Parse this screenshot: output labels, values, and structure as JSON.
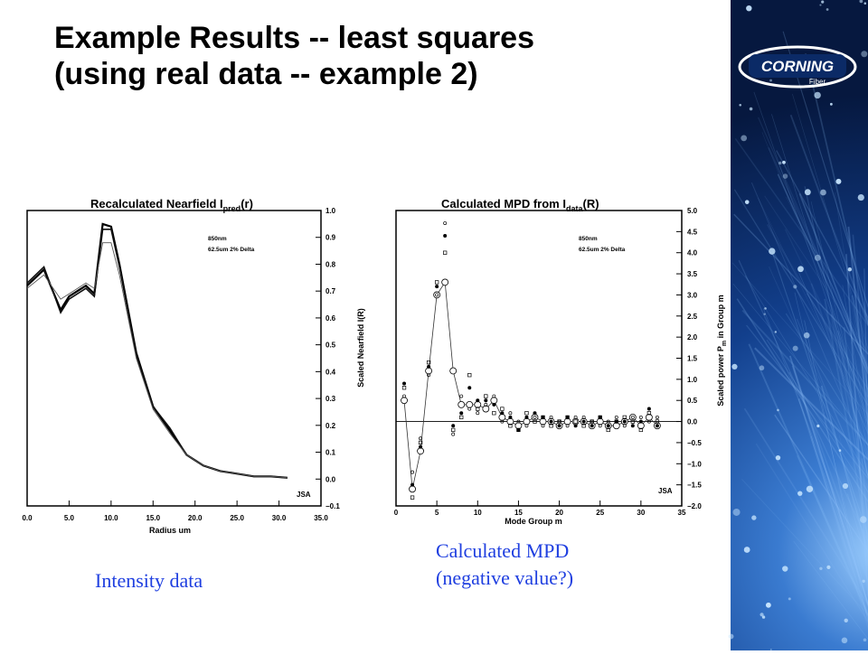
{
  "slide": {
    "title_line1": "Example Results -- least squares",
    "title_line2": "(using real data -- example 2)",
    "caption_left": "Intensity data",
    "caption_right_line1": "Calculated MPD",
    "caption_right_line2": "(negative value?)",
    "logo_text": "CORNING",
    "logo_subtext": "Fiber"
  },
  "colors": {
    "caption": "#1f3fe0",
    "sidebar": "#123f8c",
    "plot_line": "#000000"
  },
  "chart_data": [
    {
      "type": "line",
      "title": "Recalculated Nearfield I",
      "title_sub": "pred",
      "title_suffix": "(r)",
      "xlabel": "Radius um",
      "ylabel": "Scaled Nearfield I(R)",
      "legend": [
        "850nm",
        "62.5um 2% Delta"
      ],
      "signature": "JSA",
      "xlim": [
        0,
        35
      ],
      "ylim": [
        -0.1,
        1.0
      ],
      "x_ticks": [
        "0.0",
        "5.0",
        "10.0",
        "15.0",
        "20.0",
        "25.0",
        "30.0",
        "35.0"
      ],
      "y_ticks": [
        "1.0",
        "0.9",
        "0.8",
        "0.7",
        "0.6",
        "0.5",
        "0.4",
        "0.3",
        "0.2",
        "0.1",
        "0.0",
        "−0.1"
      ],
      "x": [
        0,
        2,
        4,
        5,
        7,
        8,
        9,
        10,
        11,
        13,
        15,
        17,
        19,
        21,
        23,
        25,
        27,
        29,
        31
      ],
      "series": [
        {
          "values": [
            0.72,
            0.78,
            0.63,
            0.68,
            0.72,
            0.69,
            0.95,
            0.94,
            0.8,
            0.47,
            0.27,
            0.18,
            0.09,
            0.05,
            0.03,
            0.02,
            0.01,
            0.01,
            0.005
          ]
        },
        {
          "values": [
            0.73,
            0.79,
            0.62,
            0.67,
            0.71,
            0.68,
            0.93,
            0.93,
            0.79,
            0.46,
            0.27,
            0.19,
            0.09,
            0.05,
            0.03,
            0.02,
            0.01,
            0.01,
            0.005
          ]
        },
        {
          "values": [
            0.71,
            0.76,
            0.67,
            0.69,
            0.73,
            0.71,
            0.88,
            0.88,
            0.76,
            0.45,
            0.26,
            0.17,
            0.09,
            0.05,
            0.03,
            0.02,
            0.01,
            0.01,
            0.005
          ]
        }
      ]
    },
    {
      "type": "scatter",
      "title": "Calculated MPD from I",
      "title_sub": "data",
      "title_suffix": "(R)",
      "xlabel": "Mode Group m",
      "ylabel": "Scaled power P",
      "ylabel_sub": "m",
      "ylabel_suffix": " in Group m",
      "legend": [
        "850nm",
        "62.5um 2% Delta"
      ],
      "signature": "JSA",
      "xlim": [
        0,
        35
      ],
      "ylim": [
        -2.0,
        5.0
      ],
      "x_ticks": [
        "0",
        "5",
        "10",
        "15",
        "20",
        "25",
        "30",
        "35"
      ],
      "y_ticks": [
        "5.0",
        "4.5",
        "4.0",
        "3.5",
        "3.0",
        "2.5",
        "2.0",
        "1.5",
        "1.0",
        "0.5",
        "0.0",
        "−0.5",
        "−1.0",
        "−1.5",
        "−2.0"
      ],
      "x": [
        1,
        2,
        3,
        4,
        5,
        6,
        7,
        8,
        9,
        10,
        11,
        12,
        13,
        14,
        15,
        16,
        17,
        18,
        19,
        20,
        21,
        22,
        23,
        24,
        25,
        26,
        27,
        28,
        29,
        30,
        31,
        32
      ],
      "series": [
        {
          "marker": "circle-open-line",
          "values": [
            0.5,
            -1.6,
            -0.7,
            1.2,
            3.0,
            3.3,
            1.2,
            0.4,
            0.4,
            0.4,
            0.3,
            0.5,
            0.1,
            0.0,
            -0.1,
            0.0,
            0.1,
            0.0,
            0.0,
            -0.1,
            0.0,
            0.0,
            0.0,
            -0.1,
            0.0,
            -0.1,
            -0.1,
            0.0,
            0.1,
            -0.1,
            0.1,
            -0.1
          ]
        },
        {
          "marker": "dot",
          "values": [
            0.9,
            -1.5,
            -0.6,
            1.3,
            3.2,
            4.4,
            -0.1,
            0.2,
            0.8,
            0.5,
            0.5,
            0.4,
            0.2,
            0.1,
            -0.2,
            0.1,
            0.2,
            0.1,
            0.0,
            -0.1,
            0.1,
            -0.1,
            0.0,
            -0.1,
            0.1,
            -0.1,
            0.0,
            0.0,
            -0.1,
            0.0,
            0.3,
            -0.1
          ]
        },
        {
          "marker": "square-open",
          "values": [
            0.8,
            -1.8,
            -0.5,
            1.4,
            3.3,
            4.0,
            -0.2,
            0.1,
            1.1,
            0.3,
            0.6,
            0.2,
            0.3,
            -0.1,
            -0.2,
            0.2,
            0.0,
            0.1,
            -0.1,
            0.0,
            0.1,
            0.0,
            -0.1,
            0.0,
            0.1,
            -0.2,
            0.0,
            0.1,
            0.0,
            -0.2,
            0.2,
            0.0
          ]
        },
        {
          "marker": "circle-small-open",
          "values": [
            0.6,
            -1.2,
            -0.4,
            1.1,
            3.0,
            4.7,
            -0.3,
            0.6,
            0.3,
            0.2,
            0.4,
            0.6,
            0.0,
            0.2,
            0.0,
            -0.1,
            0.1,
            -0.1,
            0.1,
            0.0,
            -0.1,
            0.1,
            0.1,
            0.0,
            -0.1,
            0.0,
            0.1,
            -0.1,
            0.1,
            0.1,
            0.0,
            0.1
          ]
        }
      ]
    }
  ]
}
